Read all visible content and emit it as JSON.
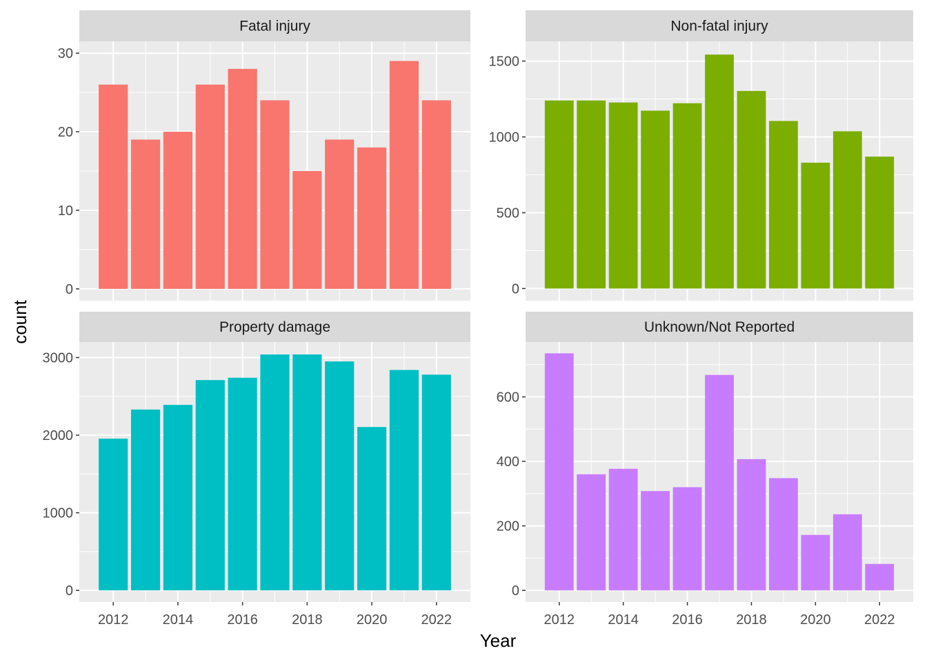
{
  "chart_data": {
    "type": "bar",
    "xlabel": "Year",
    "ylabel": "count",
    "x": [
      2012,
      2013,
      2014,
      2015,
      2016,
      2017,
      2018,
      2019,
      2020,
      2021,
      2022
    ],
    "x_ticks": [
      "2012",
      "2014",
      "2016",
      "2018",
      "2020",
      "2022"
    ],
    "grid": true,
    "legend": "none",
    "panels": [
      {
        "name": "Fatal injury",
        "color": "#F8766D",
        "values": [
          26,
          19,
          20,
          26,
          28,
          24,
          15,
          19,
          18,
          29,
          24
        ],
        "ylim": [
          -1.5,
          31.5
        ],
        "y_ticks": [
          0,
          10,
          20,
          30
        ],
        "y_tick_labels": [
          "0",
          "10",
          "20",
          "30"
        ],
        "y_minor": [
          5,
          15,
          25
        ]
      },
      {
        "name": "Non-fatal injury",
        "color": "#7CAE00",
        "values": [
          1240,
          1240,
          1227,
          1173,
          1222,
          1543,
          1303,
          1105,
          830,
          1037,
          870
        ],
        "ylim": [
          -80,
          1630
        ],
        "y_ticks": [
          0,
          500,
          1000,
          1500
        ],
        "y_tick_labels": [
          "0",
          "500",
          "1000",
          "1500"
        ],
        "y_minor": [
          250,
          750,
          1250
        ]
      },
      {
        "name": "Property damage",
        "color": "#00BFC4",
        "values": [
          1955,
          2330,
          2390,
          2710,
          2740,
          3040,
          3040,
          2950,
          2105,
          2840,
          2780
        ],
        "ylim": [
          -150,
          3200
        ],
        "y_ticks": [
          0,
          1000,
          2000,
          3000
        ],
        "y_tick_labels": [
          "0",
          "1000",
          "2000",
          "3000"
        ],
        "y_minor": [
          500,
          1500,
          2500
        ]
      },
      {
        "name": "Unknown/Not Reported",
        "color": "#C77CFF",
        "values": [
          735,
          360,
          377,
          308,
          320,
          668,
          407,
          348,
          172,
          236,
          82
        ],
        "ylim": [
          -36,
          770
        ],
        "y_ticks": [
          0,
          200,
          400,
          600
        ],
        "y_tick_labels": [
          "0",
          "200",
          "400",
          "600"
        ],
        "y_minor": [
          100,
          300,
          500,
          700
        ]
      }
    ]
  }
}
